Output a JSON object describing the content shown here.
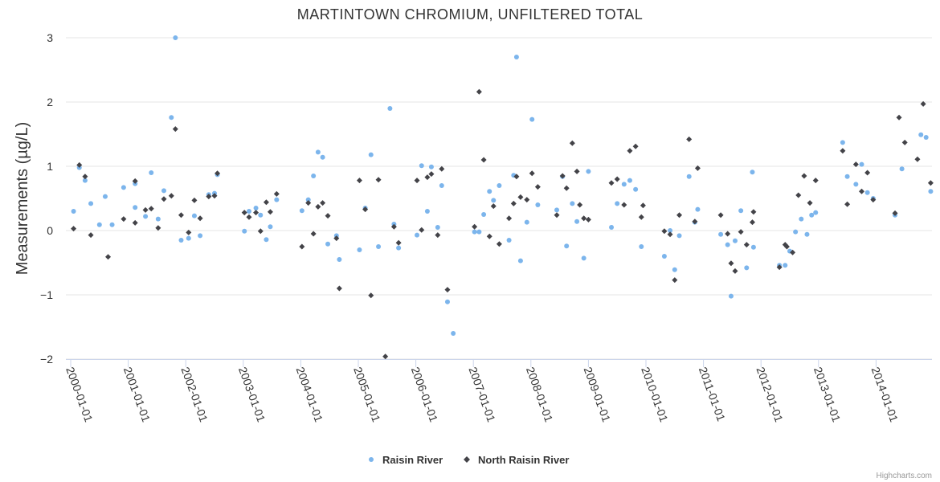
{
  "chart_data": {
    "type": "scatter",
    "title": "MARTINTOWN CHROMIUM, UNFILTERED TOTAL",
    "xlabel": "",
    "ylabel": "Measurements (µg/L)",
    "ylim": [
      -2,
      3
    ],
    "xlim": [
      "2000-01-01",
      "2014-12-31"
    ],
    "yticks": [
      -2,
      -1,
      0,
      1,
      2,
      3
    ],
    "ytick_labels": [
      "−2",
      "−1",
      "0",
      "1",
      "2",
      "3"
    ],
    "xticks": [
      "2000-01-01",
      "2001-01-01",
      "2002-01-01",
      "2003-01-01",
      "2004-01-01",
      "2005-01-01",
      "2006-01-01",
      "2007-01-01",
      "2008-01-01",
      "2009-01-01",
      "2010-01-01",
      "2011-01-01",
      "2012-01-01",
      "2013-01-01",
      "2014-01-01"
    ],
    "legend_position": "bottom-center",
    "grid": true,
    "colors": {
      "raisin": "#7cb5ec",
      "north": "#434348",
      "grid": "#e6e6e6",
      "axis": "#ccd6eb"
    },
    "series": [
      {
        "name": "Raisin River",
        "marker": "circle",
        "points": [
          [
            2000.05,
            0.3
          ],
          [
            2000.15,
            0.98
          ],
          [
            2000.25,
            0.78
          ],
          [
            2000.35,
            0.42
          ],
          [
            2000.5,
            0.09
          ],
          [
            2000.6,
            0.53
          ],
          [
            2000.72,
            0.09
          ],
          [
            2000.92,
            0.67
          ],
          [
            2001.12,
            0.73
          ],
          [
            2001.12,
            0.36
          ],
          [
            2001.3,
            0.22
          ],
          [
            2001.4,
            0.9
          ],
          [
            2001.52,
            0.18
          ],
          [
            2001.62,
            0.62
          ],
          [
            2001.75,
            1.76
          ],
          [
            2001.82,
            3.0
          ],
          [
            2001.92,
            -0.15
          ],
          [
            2002.05,
            -0.12
          ],
          [
            2002.15,
            0.23
          ],
          [
            2002.25,
            -0.08
          ],
          [
            2002.4,
            0.56
          ],
          [
            2002.5,
            0.58
          ],
          [
            2002.55,
            0.87
          ],
          [
            2003.02,
            -0.01
          ],
          [
            2003.1,
            0.3
          ],
          [
            2003.22,
            0.35
          ],
          [
            2003.3,
            0.24
          ],
          [
            2003.4,
            -0.14
          ],
          [
            2003.47,
            0.06
          ],
          [
            2003.58,
            0.48
          ],
          [
            2004.02,
            0.31
          ],
          [
            2004.13,
            0.48
          ],
          [
            2004.22,
            0.85
          ],
          [
            2004.3,
            1.22
          ],
          [
            2004.38,
            1.14
          ],
          [
            2004.47,
            -0.21
          ],
          [
            2004.62,
            -0.08
          ],
          [
            2004.67,
            -0.45
          ],
          [
            2005.02,
            -0.3
          ],
          [
            2005.12,
            0.35
          ],
          [
            2005.22,
            1.18
          ],
          [
            2005.35,
            -0.25
          ],
          [
            2005.55,
            1.9
          ],
          [
            2005.62,
            0.1
          ],
          [
            2005.7,
            -0.27
          ],
          [
            2006.02,
            -0.07
          ],
          [
            2006.1,
            1.01
          ],
          [
            2006.2,
            0.3
          ],
          [
            2006.27,
            0.99
          ],
          [
            2006.38,
            0.05
          ],
          [
            2006.45,
            0.7
          ],
          [
            2006.55,
            -1.11
          ],
          [
            2006.65,
            -1.6
          ],
          [
            2007.02,
            -0.02
          ],
          [
            2007.1,
            -0.02
          ],
          [
            2007.18,
            0.25
          ],
          [
            2007.28,
            0.61
          ],
          [
            2007.35,
            0.47
          ],
          [
            2007.45,
            0.7
          ],
          [
            2007.62,
            -0.15
          ],
          [
            2007.7,
            0.86
          ],
          [
            2007.75,
            2.7
          ],
          [
            2007.82,
            -0.47
          ],
          [
            2007.93,
            0.13
          ],
          [
            2008.02,
            1.73
          ],
          [
            2008.12,
            0.4
          ],
          [
            2008.45,
            0.32
          ],
          [
            2008.55,
            0.84
          ],
          [
            2008.62,
            -0.24
          ],
          [
            2008.72,
            0.42
          ],
          [
            2008.8,
            0.14
          ],
          [
            2008.92,
            -0.43
          ],
          [
            2009.0,
            0.92
          ],
          [
            2009.4,
            0.05
          ],
          [
            2009.5,
            0.42
          ],
          [
            2009.62,
            0.72
          ],
          [
            2009.72,
            0.78
          ],
          [
            2009.82,
            0.64
          ],
          [
            2009.92,
            -0.25
          ],
          [
            2010.32,
            -0.4
          ],
          [
            2010.42,
            0.0
          ],
          [
            2010.5,
            -0.61
          ],
          [
            2010.58,
            -0.08
          ],
          [
            2010.75,
            0.84
          ],
          [
            2010.85,
            0.13
          ],
          [
            2010.9,
            0.33
          ],
          [
            2011.3,
            -0.06
          ],
          [
            2011.42,
            -0.22
          ],
          [
            2011.48,
            -1.02
          ],
          [
            2011.55,
            -0.16
          ],
          [
            2011.65,
            0.31
          ],
          [
            2011.75,
            -0.58
          ],
          [
            2011.85,
            0.91
          ],
          [
            2011.87,
            -0.26
          ],
          [
            2012.32,
            -0.54
          ],
          [
            2012.42,
            -0.54
          ],
          [
            2012.5,
            -0.32
          ],
          [
            2012.6,
            -0.02
          ],
          [
            2012.7,
            0.18
          ],
          [
            2012.8,
            -0.06
          ],
          [
            2012.88,
            0.24
          ],
          [
            2012.95,
            0.28
          ],
          [
            2013.42,
            1.37
          ],
          [
            2013.5,
            0.84
          ],
          [
            2013.65,
            0.72
          ],
          [
            2013.75,
            1.03
          ],
          [
            2013.85,
            0.59
          ],
          [
            2013.95,
            0.5
          ],
          [
            2014.33,
            0.24
          ],
          [
            2014.45,
            0.96
          ],
          [
            2014.78,
            1.49
          ],
          [
            2014.87,
            1.45
          ],
          [
            2014.95,
            0.61
          ]
        ]
      },
      {
        "name": "North Raisin River",
        "marker": "diamond",
        "points": [
          [
            2000.05,
            0.03
          ],
          [
            2000.15,
            1.02
          ],
          [
            2000.25,
            0.84
          ],
          [
            2000.35,
            -0.07
          ],
          [
            2000.65,
            -0.41
          ],
          [
            2000.92,
            0.18
          ],
          [
            2001.12,
            0.77
          ],
          [
            2001.12,
            0.12
          ],
          [
            2001.3,
            0.32
          ],
          [
            2001.4,
            0.34
          ],
          [
            2001.52,
            0.04
          ],
          [
            2001.62,
            0.49
          ],
          [
            2001.75,
            0.54
          ],
          [
            2001.82,
            1.58
          ],
          [
            2001.92,
            0.24
          ],
          [
            2002.05,
            -0.03
          ],
          [
            2002.15,
            0.47
          ],
          [
            2002.25,
            0.19
          ],
          [
            2002.4,
            0.53
          ],
          [
            2002.5,
            0.54
          ],
          [
            2002.55,
            0.89
          ],
          [
            2003.02,
            0.28
          ],
          [
            2003.1,
            0.21
          ],
          [
            2003.22,
            0.28
          ],
          [
            2003.3,
            -0.01
          ],
          [
            2003.4,
            0.44
          ],
          [
            2003.47,
            0.29
          ],
          [
            2003.58,
            0.57
          ],
          [
            2004.02,
            -0.25
          ],
          [
            2004.13,
            0.43
          ],
          [
            2004.22,
            -0.05
          ],
          [
            2004.3,
            0.37
          ],
          [
            2004.38,
            0.43
          ],
          [
            2004.47,
            0.23
          ],
          [
            2004.62,
            -0.12
          ],
          [
            2004.67,
            -0.9
          ],
          [
            2005.02,
            0.78
          ],
          [
            2005.12,
            0.33
          ],
          [
            2005.22,
            -1.01
          ],
          [
            2005.35,
            0.79
          ],
          [
            2005.47,
            -1.96
          ],
          [
            2005.62,
            0.06
          ],
          [
            2005.7,
            -0.19
          ],
          [
            2006.02,
            0.78
          ],
          [
            2006.1,
            0.01
          ],
          [
            2006.2,
            0.83
          ],
          [
            2006.27,
            0.88
          ],
          [
            2006.38,
            -0.07
          ],
          [
            2006.45,
            0.96
          ],
          [
            2006.55,
            -0.92
          ],
          [
            2007.02,
            0.06
          ],
          [
            2007.1,
            2.16
          ],
          [
            2007.18,
            1.1
          ],
          [
            2007.28,
            -0.09
          ],
          [
            2007.35,
            0.38
          ],
          [
            2007.45,
            -0.21
          ],
          [
            2007.62,
            0.19
          ],
          [
            2007.7,
            0.42
          ],
          [
            2007.75,
            0.84
          ],
          [
            2007.82,
            0.52
          ],
          [
            2007.93,
            0.48
          ],
          [
            2008.02,
            0.89
          ],
          [
            2008.12,
            0.68
          ],
          [
            2008.45,
            0.24
          ],
          [
            2008.55,
            0.85
          ],
          [
            2008.62,
            0.66
          ],
          [
            2008.72,
            1.36
          ],
          [
            2008.8,
            0.92
          ],
          [
            2008.85,
            0.4
          ],
          [
            2008.92,
            0.19
          ],
          [
            2009.0,
            0.17
          ],
          [
            2009.4,
            0.74
          ],
          [
            2009.5,
            0.8
          ],
          [
            2009.62,
            0.4
          ],
          [
            2009.72,
            1.24
          ],
          [
            2009.82,
            1.31
          ],
          [
            2009.92,
            0.21
          ],
          [
            2009.95,
            0.39
          ],
          [
            2010.32,
            -0.01
          ],
          [
            2010.42,
            -0.06
          ],
          [
            2010.5,
            -0.77
          ],
          [
            2010.58,
            0.24
          ],
          [
            2010.75,
            1.42
          ],
          [
            2010.85,
            0.14
          ],
          [
            2010.9,
            0.97
          ],
          [
            2011.3,
            0.24
          ],
          [
            2011.42,
            -0.05
          ],
          [
            2011.48,
            -0.51
          ],
          [
            2011.55,
            -0.63
          ],
          [
            2011.65,
            -0.02
          ],
          [
            2011.75,
            -0.22
          ],
          [
            2011.85,
            0.13
          ],
          [
            2011.87,
            0.29
          ],
          [
            2012.32,
            -0.57
          ],
          [
            2012.42,
            -0.22
          ],
          [
            2012.45,
            -0.25
          ],
          [
            2012.55,
            -0.34
          ],
          [
            2012.65,
            0.55
          ],
          [
            2012.75,
            0.85
          ],
          [
            2012.85,
            0.43
          ],
          [
            2012.95,
            0.78
          ],
          [
            2013.42,
            1.24
          ],
          [
            2013.5,
            0.41
          ],
          [
            2013.65,
            1.03
          ],
          [
            2013.75,
            0.61
          ],
          [
            2013.85,
            0.9
          ],
          [
            2013.95,
            0.48
          ],
          [
            2014.33,
            0.27
          ],
          [
            2014.4,
            1.76
          ],
          [
            2014.5,
            1.37
          ],
          [
            2014.72,
            1.11
          ],
          [
            2014.82,
            1.97
          ],
          [
            2014.95,
            0.74
          ]
        ]
      }
    ],
    "credits": "Highcharts.com"
  }
}
